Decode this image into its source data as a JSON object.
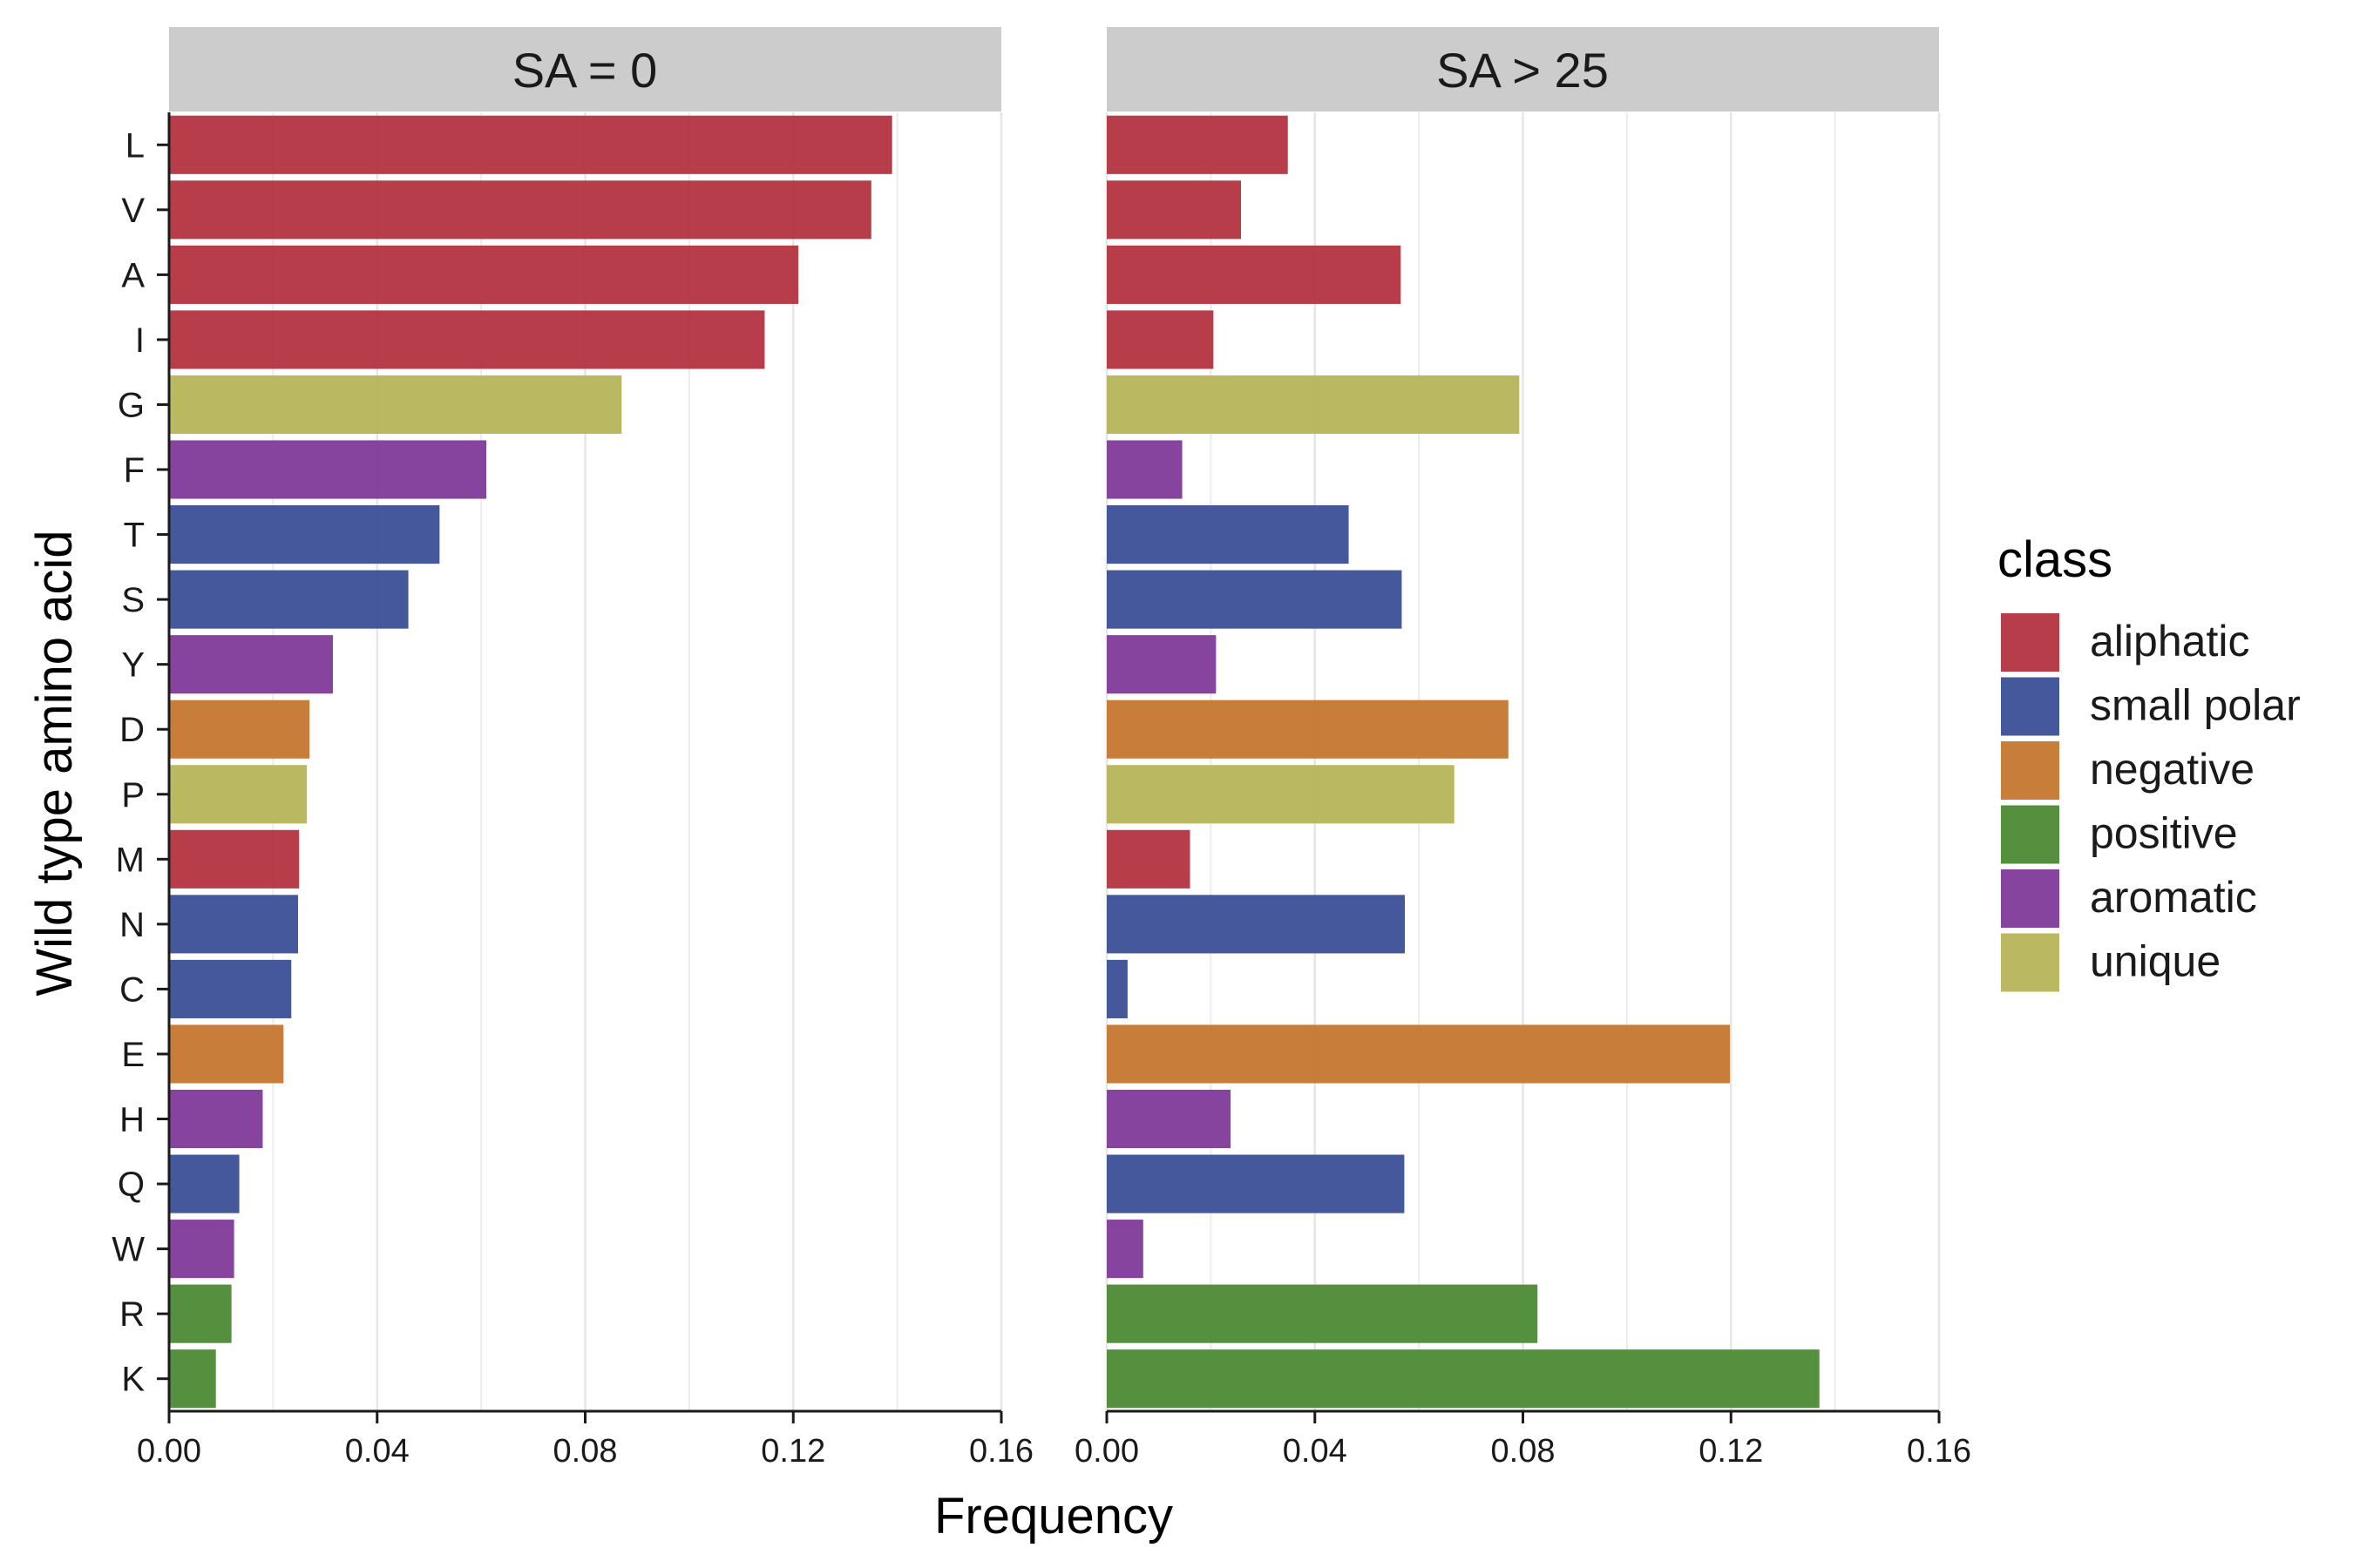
{
  "chart_data": {
    "type": "bar",
    "orientation": "horizontal",
    "xlabel": "Frequency",
    "ylabel": "Wild type amino acid",
    "xlim": [
      0,
      0.16
    ],
    "xticks": [
      "0.00",
      "0.04",
      "0.08",
      "0.12",
      "0.16"
    ],
    "grid": "vertical",
    "categories": [
      "L",
      "V",
      "A",
      "I",
      "G",
      "F",
      "T",
      "S",
      "Y",
      "D",
      "P",
      "M",
      "N",
      "C",
      "E",
      "H",
      "Q",
      "W",
      "R",
      "K"
    ],
    "classes": [
      "aliphatic",
      "aliphatic",
      "aliphatic",
      "aliphatic",
      "unique",
      "aromatic",
      "small polar",
      "small polar",
      "aromatic",
      "negative",
      "unique",
      "aliphatic",
      "small polar",
      "small polar",
      "negative",
      "aromatic",
      "small polar",
      "aromatic",
      "positive",
      "positive"
    ],
    "panels": [
      {
        "title": "SA = 0",
        "values": [
          0.139,
          0.135,
          0.121,
          0.1145,
          0.087,
          0.061,
          0.052,
          0.046,
          0.0315,
          0.027,
          0.0265,
          0.025,
          0.0248,
          0.0235,
          0.022,
          0.018,
          0.0135,
          0.0125,
          0.012,
          0.009
        ]
      },
      {
        "title": "SA > 25",
        "values": [
          0.0348,
          0.0258,
          0.0565,
          0.0205,
          0.0793,
          0.0145,
          0.0465,
          0.0567,
          0.021,
          0.0772,
          0.0668,
          0.016,
          0.0573,
          0.004,
          0.1198,
          0.0238,
          0.0572,
          0.007,
          0.0828,
          0.137
        ]
      }
    ],
    "legend": {
      "title": "class",
      "position": "right",
      "items": [
        "aliphatic",
        "small polar",
        "negative",
        "positive",
        "aromatic",
        "unique"
      ]
    },
    "colors": {
      "aliphatic": "#b2333f",
      "small polar": "#3b4f96",
      "negative": "#c5772f",
      "positive": "#4b8a34",
      "aromatic": "#7f3a99",
      "unique": "#b6b55a"
    }
  }
}
